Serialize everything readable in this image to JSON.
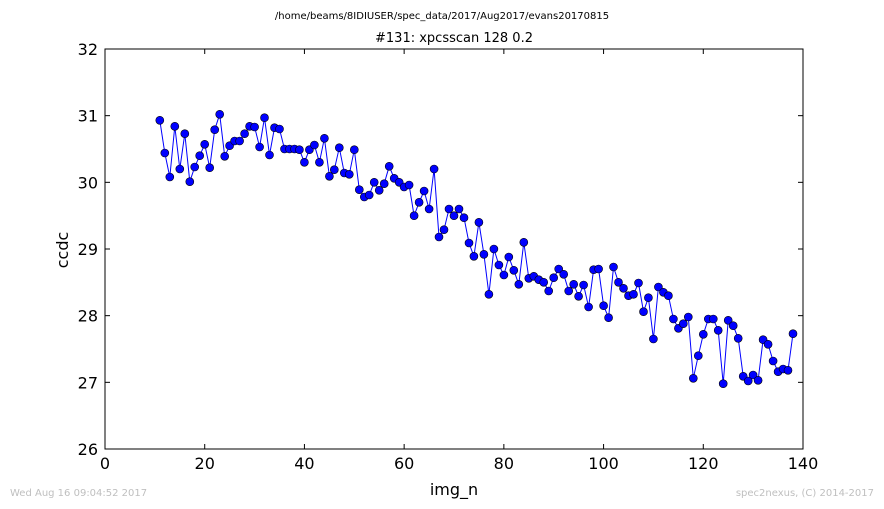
{
  "suptitle": "/home/beams/8IDIUSER/spec_data/2017/Aug2017/evans20170815",
  "footer": {
    "timestamp": "Wed Aug 16 09:04:52 2017",
    "credit": "spec2nexus, (C) 2014-2017"
  },
  "chart_data": {
    "type": "line",
    "title": "#131: xpcsscan 128 0.2",
    "xlabel": "img_n",
    "ylabel": "ccdc",
    "xlim": [
      0,
      140
    ],
    "ylim": [
      26,
      32
    ],
    "xticks": [
      0,
      20,
      40,
      60,
      80,
      100,
      120,
      140
    ],
    "yticks": [
      26,
      27,
      28,
      29,
      30,
      31,
      32
    ],
    "grid": false,
    "marker": "circle",
    "color": "#0000ff",
    "series": [
      {
        "x": [
          11,
          12,
          13,
          14,
          15,
          16,
          17,
          18,
          19,
          20,
          21,
          22,
          23,
          24,
          25,
          26,
          27,
          28,
          29,
          30,
          31,
          32,
          33,
          34,
          35,
          36,
          37,
          38,
          39,
          40,
          41,
          42,
          43,
          44,
          45,
          46,
          47,
          48,
          49,
          50,
          51,
          52,
          53,
          54,
          55,
          56,
          57,
          58,
          59,
          60,
          61,
          62,
          63,
          64,
          65,
          66,
          67,
          68,
          69,
          70,
          71,
          72,
          73,
          74,
          75,
          76,
          77,
          78,
          79,
          80,
          81,
          82,
          83,
          84,
          85,
          86,
          87,
          88,
          89,
          90,
          91,
          92,
          93,
          94,
          95,
          96,
          97,
          98,
          99,
          100,
          101,
          102,
          103,
          104,
          105,
          106,
          107,
          108,
          109,
          110,
          111,
          112,
          113,
          114,
          115,
          116,
          117,
          118,
          119,
          120,
          121,
          122,
          123,
          124,
          125,
          126,
          127,
          128,
          129,
          130,
          131,
          132,
          133,
          134,
          135,
          136,
          137,
          138
        ],
        "y": [
          30.93,
          30.44,
          30.08,
          30.84,
          30.2,
          30.73,
          30.01,
          30.23,
          30.4,
          30.57,
          30.22,
          30.79,
          31.02,
          30.39,
          30.55,
          30.62,
          30.62,
          30.73,
          30.84,
          30.83,
          30.53,
          30.97,
          30.41,
          30.82,
          30.8,
          30.5,
          30.5,
          30.5,
          30.49,
          30.3,
          30.49,
          30.56,
          30.3,
          30.66,
          30.09,
          30.19,
          30.52,
          30.14,
          30.12,
          30.49,
          29.89,
          29.78,
          29.81,
          30.0,
          29.88,
          29.98,
          30.24,
          30.06,
          30.0,
          29.93,
          29.96,
          29.5,
          29.7,
          29.87,
          29.6,
          30.2,
          29.18,
          29.29,
          29.6,
          29.5,
          29.6,
          29.47,
          29.09,
          28.89,
          29.4,
          28.92,
          28.32,
          29.0,
          28.76,
          28.61,
          28.88,
          28.68,
          28.47,
          29.1,
          28.56,
          28.59,
          28.54,
          28.5,
          28.37,
          28.57,
          28.7,
          28.62,
          28.37,
          28.47,
          28.29,
          28.46,
          28.13,
          28.69,
          28.7,
          28.15,
          27.97,
          28.73,
          28.5,
          28.41,
          28.3,
          28.32,
          28.49,
          28.06,
          28.27,
          27.65,
          28.43,
          28.35,
          28.3,
          27.95,
          27.81,
          27.88,
          27.98,
          27.06,
          27.4,
          27.72,
          27.95,
          27.95,
          27.78,
          26.98,
          27.93,
          27.85,
          27.66,
          27.09,
          27.02,
          27.11,
          27.03,
          27.64,
          27.57,
          27.32,
          27.16,
          27.2,
          27.18,
          27.73
        ]
      }
    ]
  }
}
